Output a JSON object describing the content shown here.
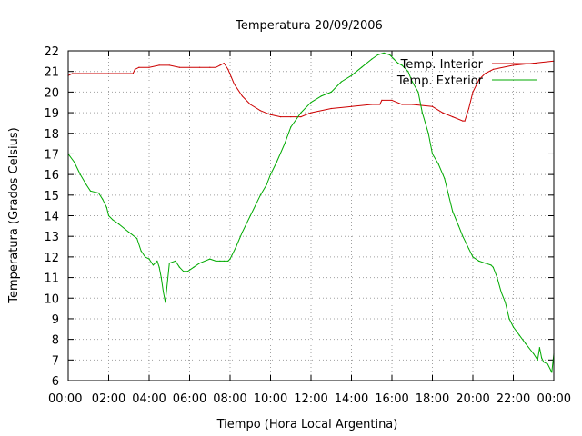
{
  "chart_data": {
    "type": "line",
    "title": "Temperatura 20/09/2006",
    "xlabel": "Tiempo (Hora Local Argentina)",
    "ylabel": "Temperatura (Grados Celsius)",
    "x_unit": "hours",
    "xlim": [
      0,
      24
    ],
    "ylim": [
      6,
      22
    ],
    "x_ticks": [
      0,
      2,
      4,
      6,
      8,
      10,
      12,
      14,
      16,
      18,
      20,
      22,
      24
    ],
    "x_tick_labels": [
      "00:00",
      "02:00",
      "04:00",
      "06:00",
      "08:00",
      "10:00",
      "12:00",
      "14:00",
      "16:00",
      "18:00",
      "20:00",
      "22:00",
      "00:00"
    ],
    "y_ticks": [
      6,
      7,
      8,
      9,
      10,
      11,
      12,
      13,
      14,
      15,
      16,
      17,
      18,
      19,
      20,
      21,
      22
    ],
    "y_tick_labels": [
      "6",
      "7",
      "8",
      "9",
      "10",
      "11",
      "12",
      "13",
      "14",
      "15",
      "16",
      "17",
      "18",
      "19",
      "20",
      "21",
      "22"
    ],
    "grid": true,
    "legend_position": "top-right",
    "series": [
      {
        "name": "Temp. Interior",
        "color": "#cc0000",
        "x": [
          0,
          0.2,
          0.5,
          3.2,
          3.3,
          3.5,
          4.0,
          4.5,
          5.0,
          5.5,
          6.0,
          6.5,
          7.0,
          7.3,
          7.5,
          7.7,
          7.9,
          8.2,
          8.6,
          9.0,
          9.5,
          10.0,
          10.5,
          11.0,
          11.5,
          12.0,
          13.0,
          14.0,
          15.0,
          15.4,
          15.5,
          16.0,
          16.5,
          17.0,
          18.0,
          18.5,
          19.0,
          19.5,
          19.6,
          19.8,
          20.0,
          20.3,
          20.6,
          21.0,
          22.0,
          23.0,
          24.0
        ],
        "y": [
          20.8,
          20.9,
          20.9,
          20.9,
          21.1,
          21.2,
          21.2,
          21.3,
          21.3,
          21.2,
          21.2,
          21.2,
          21.2,
          21.2,
          21.3,
          21.4,
          21.1,
          20.4,
          19.8,
          19.4,
          19.1,
          18.9,
          18.8,
          18.8,
          18.8,
          19.0,
          19.2,
          19.3,
          19.4,
          19.4,
          19.6,
          19.6,
          19.4,
          19.4,
          19.3,
          19.0,
          18.8,
          18.6,
          18.6,
          19.2,
          20.0,
          20.6,
          20.9,
          21.1,
          21.3,
          21.4,
          21.5
        ]
      },
      {
        "name": "Temp. Exterior",
        "color": "#00aa00",
        "x": [
          0,
          0.3,
          0.6,
          0.9,
          1.1,
          1.5,
          1.7,
          1.9,
          2.0,
          2.2,
          2.5,
          3.0,
          3.4,
          3.6,
          3.8,
          4.0,
          4.2,
          4.4,
          4.5,
          4.6,
          4.7,
          4.8,
          5.0,
          5.3,
          5.5,
          5.7,
          5.9,
          6.2,
          6.5,
          7.0,
          7.3,
          7.5,
          7.7,
          7.9,
          8.0,
          8.3,
          8.6,
          9.0,
          9.5,
          9.8,
          10.0,
          10.3,
          10.7,
          11.0,
          11.5,
          12.0,
          12.5,
          13.0,
          13.5,
          14.0,
          14.5,
          15.0,
          15.3,
          15.6,
          15.9,
          16.1,
          16.3,
          16.5,
          16.8,
          17.0,
          17.3,
          17.5,
          17.8,
          18.0,
          18.3,
          18.6,
          18.8,
          19.0,
          19.3,
          19.5,
          19.8,
          20.0,
          20.3,
          20.6,
          20.9,
          21.0,
          21.2,
          21.4,
          21.6,
          21.8,
          22.0,
          22.3,
          22.6,
          23.0,
          23.2,
          23.3,
          23.4,
          23.5,
          23.7,
          23.9,
          24.0
        ],
        "y": [
          17.0,
          16.6,
          16.0,
          15.5,
          15.2,
          15.1,
          14.8,
          14.4,
          14.0,
          13.8,
          13.6,
          13.2,
          12.9,
          12.3,
          12.0,
          11.9,
          11.6,
          11.8,
          11.5,
          11.0,
          10.3,
          9.8,
          11.7,
          11.8,
          11.5,
          11.3,
          11.3,
          11.5,
          11.7,
          11.9,
          11.8,
          11.8,
          11.8,
          11.8,
          11.9,
          12.5,
          13.2,
          14.0,
          15.0,
          15.5,
          16.0,
          16.6,
          17.5,
          18.3,
          19.0,
          19.5,
          19.8,
          20.0,
          20.5,
          20.8,
          21.2,
          21.6,
          21.8,
          21.9,
          21.8,
          21.6,
          21.4,
          21.3,
          21.0,
          20.5,
          20.0,
          19.0,
          18.0,
          17.0,
          16.5,
          15.8,
          15.0,
          14.2,
          13.5,
          13.0,
          12.4,
          12.0,
          11.8,
          11.7,
          11.6,
          11.5,
          11.0,
          10.3,
          9.8,
          9.0,
          8.6,
          8.2,
          7.8,
          7.3,
          7.0,
          7.6,
          7.1,
          6.9,
          6.8,
          6.4,
          7.3
        ]
      }
    ]
  }
}
